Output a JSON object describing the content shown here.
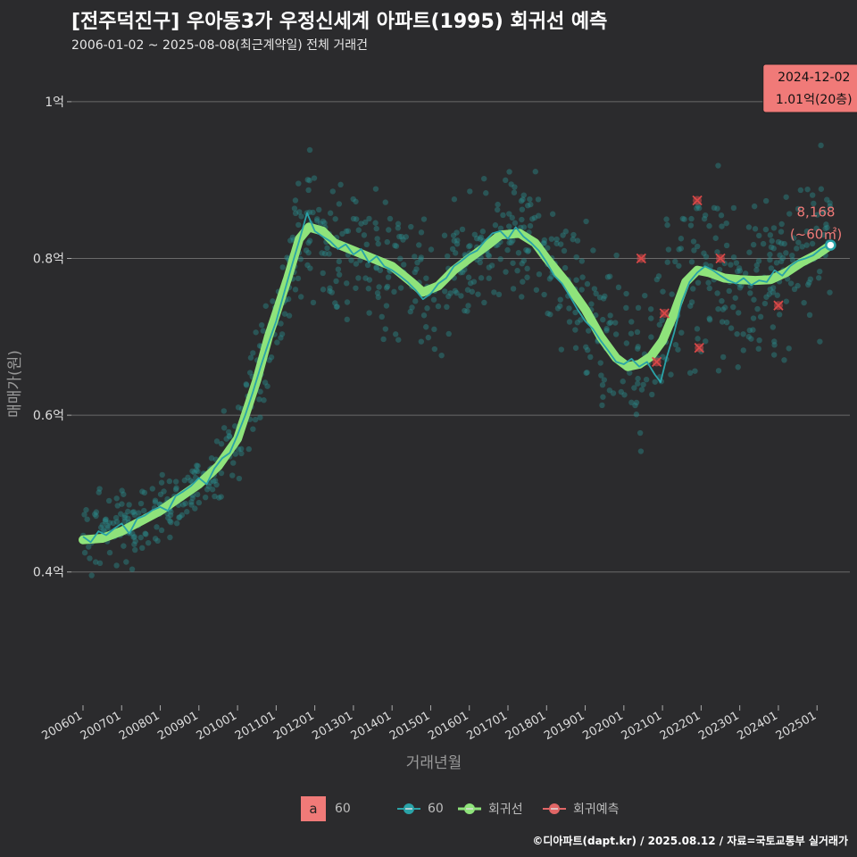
{
  "header": {
    "title": "[전주덕진구] 우아동3가 우정신세계 아파트(1995) 회귀선 예측",
    "subtitle": "2006-01-02 ~ 2025-08-08(최근계약일) 전체 거래건"
  },
  "footer": {
    "credit": "©디아파트(dapt.kr) / 2025.08.12 / 자료=국토교통부 실거래가"
  },
  "legend": {
    "box_letter": "a",
    "box_label": "60",
    "series_label": "60",
    "regression_label": "회귀선",
    "forecast_label": "회귀예측"
  },
  "colors": {
    "background": "#2b2b2d",
    "scatter": "#2a8a8a",
    "line": "#2aa3a8",
    "regression": "#8fe37b",
    "forecast": "#d94848",
    "callout": "#f07a78",
    "grid": "#6a6a6a"
  },
  "chart_data": {
    "type": "line",
    "title": "[전주덕진구] 우아동3가 우정신세계 아파트(1995) 회귀선 예측",
    "xlabel": "거래년월",
    "ylabel": "매매가(원)",
    "xlim": [
      2005.7,
      2025.85
    ],
    "ylim": [
      0.23,
      1.05
    ],
    "y_ticks": [
      {
        "value": 0.4,
        "label": "0.4억"
      },
      {
        "value": 0.6,
        "label": "0.6억"
      },
      {
        "value": 0.8,
        "label": "0.8억"
      },
      {
        "value": 1.0,
        "label": "1억"
      }
    ],
    "x_ticks": [
      {
        "value": 2006,
        "label": "200601"
      },
      {
        "value": 2007,
        "label": "200701"
      },
      {
        "value": 2008,
        "label": "200801"
      },
      {
        "value": 2009,
        "label": "200901"
      },
      {
        "value": 2010,
        "label": "201001"
      },
      {
        "value": 2011,
        "label": "201101"
      },
      {
        "value": 2012,
        "label": "201201"
      },
      {
        "value": 2013,
        "label": "201301"
      },
      {
        "value": 2014,
        "label": "201401"
      },
      {
        "value": 2015,
        "label": "201501"
      },
      {
        "value": 2016,
        "label": "201601"
      },
      {
        "value": 2017,
        "label": "201701"
      },
      {
        "value": 2018,
        "label": "201801"
      },
      {
        "value": 2019,
        "label": "201901"
      },
      {
        "value": 2020,
        "label": "202001"
      },
      {
        "value": 2021,
        "label": "202101"
      },
      {
        "value": 2022,
        "label": "202201"
      },
      {
        "value": 2023,
        "label": "202301"
      },
      {
        "value": 2024,
        "label": "202401"
      },
      {
        "value": 2025,
        "label": "202501"
      }
    ],
    "regression_series": {
      "name": "회귀선",
      "points": [
        [
          2006.0,
          0.441
        ],
        [
          2006.5,
          0.443
        ],
        [
          2007.0,
          0.452
        ],
        [
          2007.5,
          0.465
        ],
        [
          2008.0,
          0.478
        ],
        [
          2008.5,
          0.495
        ],
        [
          2009.0,
          0.512
        ],
        [
          2009.5,
          0.535
        ],
        [
          2010.0,
          0.57
        ],
        [
          2010.5,
          0.645
        ],
        [
          2010.8,
          0.7
        ],
        [
          2011.0,
          0.73
        ],
        [
          2011.3,
          0.775
        ],
        [
          2011.6,
          0.825
        ],
        [
          2011.85,
          0.84
        ],
        [
          2012.2,
          0.835
        ],
        [
          2012.5,
          0.82
        ],
        [
          2013.0,
          0.81
        ],
        [
          2013.5,
          0.8
        ],
        [
          2014.0,
          0.79
        ],
        [
          2014.5,
          0.77
        ],
        [
          2014.8,
          0.757
        ],
        [
          2015.2,
          0.765
        ],
        [
          2015.6,
          0.785
        ],
        [
          2016.0,
          0.8
        ],
        [
          2016.5,
          0.818
        ],
        [
          2016.8,
          0.83
        ],
        [
          2017.3,
          0.832
        ],
        [
          2017.7,
          0.82
        ],
        [
          2018.0,
          0.8
        ],
        [
          2018.5,
          0.77
        ],
        [
          2019.0,
          0.735
        ],
        [
          2019.4,
          0.7
        ],
        [
          2019.8,
          0.673
        ],
        [
          2020.1,
          0.662
        ],
        [
          2020.4,
          0.665
        ],
        [
          2020.7,
          0.675
        ],
        [
          2021.0,
          0.695
        ],
        [
          2021.3,
          0.73
        ],
        [
          2021.6,
          0.77
        ],
        [
          2021.9,
          0.785
        ],
        [
          2022.2,
          0.782
        ],
        [
          2022.6,
          0.775
        ],
        [
          2023.0,
          0.773
        ],
        [
          2023.4,
          0.772
        ],
        [
          2023.8,
          0.773
        ],
        [
          2024.2,
          0.782
        ],
        [
          2024.6,
          0.795
        ],
        [
          2025.0,
          0.805
        ],
        [
          2025.35,
          0.817
        ]
      ]
    },
    "series": [
      {
        "name": "60",
        "points": [
          [
            2006.0,
            0.445
          ],
          [
            2006.2,
            0.438
          ],
          [
            2006.4,
            0.452
          ],
          [
            2006.6,
            0.447
          ],
          [
            2006.8,
            0.455
          ],
          [
            2007.0,
            0.462
          ],
          [
            2007.2,
            0.449
          ],
          [
            2007.4,
            0.468
          ],
          [
            2007.6,
            0.472
          ],
          [
            2007.8,
            0.479
          ],
          [
            2008.0,
            0.483
          ],
          [
            2008.2,
            0.478
          ],
          [
            2008.4,
            0.497
          ],
          [
            2008.6,
            0.503
          ],
          [
            2008.8,
            0.51
          ],
          [
            2009.0,
            0.52
          ],
          [
            2009.2,
            0.512
          ],
          [
            2009.4,
            0.532
          ],
          [
            2009.6,
            0.545
          ],
          [
            2009.8,
            0.552
          ],
          [
            2010.0,
            0.575
          ],
          [
            2010.2,
            0.6
          ],
          [
            2010.4,
            0.63
          ],
          [
            2010.6,
            0.662
          ],
          [
            2010.8,
            0.692
          ],
          [
            2011.0,
            0.72
          ],
          [
            2011.2,
            0.755
          ],
          [
            2011.4,
            0.79
          ],
          [
            2011.6,
            0.823
          ],
          [
            2011.8,
            0.858
          ],
          [
            2012.0,
            0.835
          ],
          [
            2012.2,
            0.828
          ],
          [
            2012.4,
            0.822
          ],
          [
            2012.6,
            0.812
          ],
          [
            2012.8,
            0.818
          ],
          [
            2013.0,
            0.805
          ],
          [
            2013.2,
            0.812
          ],
          [
            2013.4,
            0.795
          ],
          [
            2013.6,
            0.803
          ],
          [
            2013.8,
            0.79
          ],
          [
            2014.0,
            0.785
          ],
          [
            2014.2,
            0.778
          ],
          [
            2014.4,
            0.77
          ],
          [
            2014.6,
            0.76
          ],
          [
            2014.8,
            0.748
          ],
          [
            2015.0,
            0.755
          ],
          [
            2015.2,
            0.768
          ],
          [
            2015.4,
            0.775
          ],
          [
            2015.6,
            0.79
          ],
          [
            2015.8,
            0.797
          ],
          [
            2016.0,
            0.805
          ],
          [
            2016.2,
            0.81
          ],
          [
            2016.4,
            0.822
          ],
          [
            2016.6,
            0.832
          ],
          [
            2016.8,
            0.835
          ],
          [
            2017.0,
            0.825
          ],
          [
            2017.2,
            0.84
          ],
          [
            2017.4,
            0.828
          ],
          [
            2017.6,
            0.82
          ],
          [
            2017.8,
            0.81
          ],
          [
            2018.0,
            0.795
          ],
          [
            2018.2,
            0.778
          ],
          [
            2018.4,
            0.768
          ],
          [
            2018.6,
            0.752
          ],
          [
            2018.8,
            0.735
          ],
          [
            2019.0,
            0.72
          ],
          [
            2019.2,
            0.71
          ],
          [
            2019.4,
            0.695
          ],
          [
            2019.6,
            0.682
          ],
          [
            2019.8,
            0.668
          ],
          [
            2020.0,
            0.665
          ],
          [
            2020.2,
            0.672
          ],
          [
            2020.4,
            0.662
          ],
          [
            2020.6,
            0.668
          ],
          [
            2020.8,
            0.652
          ],
          [
            2020.95,
            0.642
          ],
          [
            2021.1,
            0.672
          ],
          [
            2021.3,
            0.705
          ],
          [
            2021.5,
            0.745
          ],
          [
            2021.7,
            0.77
          ],
          [
            2021.9,
            0.782
          ],
          [
            2022.1,
            0.79
          ],
          [
            2022.3,
            0.785
          ],
          [
            2022.5,
            0.778
          ],
          [
            2022.7,
            0.772
          ],
          [
            2022.9,
            0.768
          ],
          [
            2023.1,
            0.775
          ],
          [
            2023.3,
            0.766
          ],
          [
            2023.5,
            0.772
          ],
          [
            2023.7,
            0.77
          ],
          [
            2023.9,
            0.785
          ],
          [
            2024.1,
            0.778
          ],
          [
            2024.3,
            0.79
          ],
          [
            2024.5,
            0.797
          ],
          [
            2024.7,
            0.8
          ],
          [
            2024.9,
            0.804
          ],
          [
            2025.1,
            0.812
          ],
          [
            2025.3,
            0.817
          ]
        ]
      }
    ],
    "forecast_points": [
      [
        2020.45,
        0.8
      ],
      [
        2020.85,
        0.668
      ],
      [
        2021.05,
        0.73
      ],
      [
        2021.9,
        0.874
      ],
      [
        2021.95,
        0.686
      ],
      [
        2022.5,
        0.8
      ],
      [
        2024.0,
        0.74
      ]
    ],
    "last_point": {
      "x": 2025.35,
      "y": 0.817
    },
    "last_label": {
      "line1": "8,168",
      "line2": "(~60㎡)"
    },
    "callout": {
      "date": "2024-12-02",
      "text": "1.01억(20층)",
      "x": 2024.92,
      "y": 1.01
    }
  }
}
